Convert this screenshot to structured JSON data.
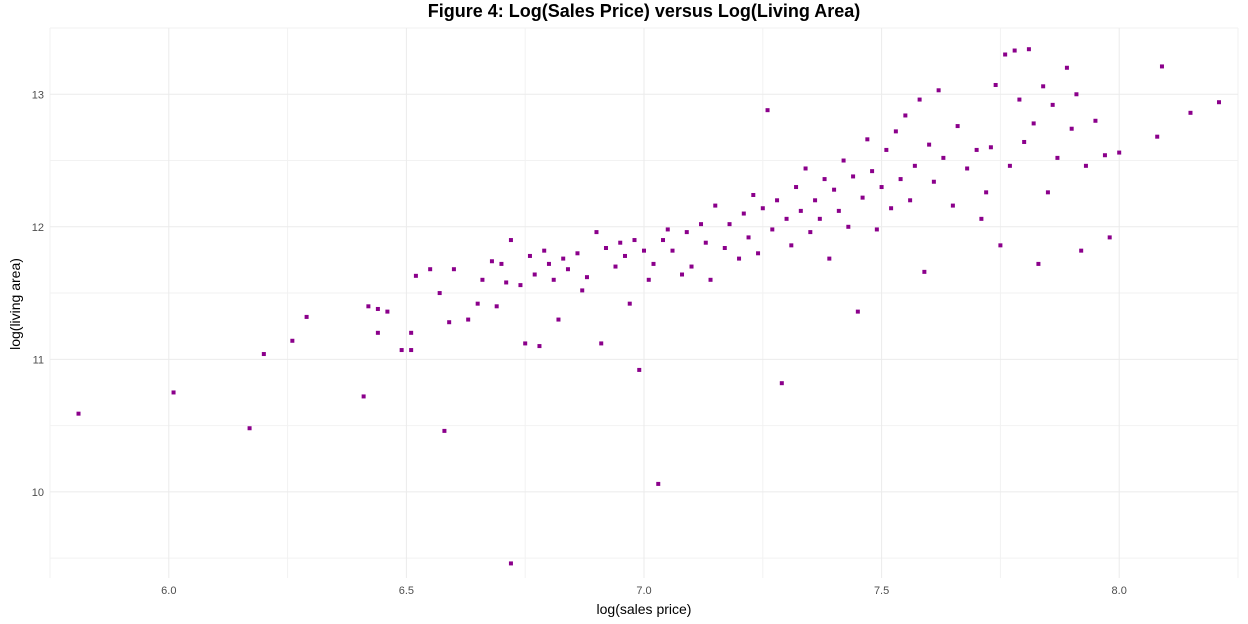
{
  "chart_data": {
    "type": "scatter",
    "title": "Figure 4: Log(Sales Price) versus Log(Living Area)",
    "xlabel": "log(sales price)",
    "ylabel": "log(living area)",
    "xlim": [
      5.75,
      8.25
    ],
    "ylim": [
      9.35,
      13.5
    ],
    "x_ticks": [
      6.0,
      6.5,
      7.0,
      7.5,
      8.0
    ],
    "x_tick_labels": [
      "6.0",
      "6.5",
      "7.0",
      "7.5",
      "8.0"
    ],
    "y_ticks": [
      10,
      11,
      12,
      13
    ],
    "y_tick_labels": [
      "10",
      "11",
      "12",
      "13"
    ],
    "grid": true,
    "point_color": "#8B008B",
    "series": [
      {
        "points": [
          [
            5.81,
            10.59
          ],
          [
            6.01,
            10.75
          ],
          [
            6.17,
            10.48
          ],
          [
            6.2,
            11.04
          ],
          [
            6.26,
            11.14
          ],
          [
            6.29,
            11.32
          ],
          [
            6.41,
            10.72
          ],
          [
            6.42,
            11.4
          ],
          [
            6.44,
            11.38
          ],
          [
            6.44,
            11.2
          ],
          [
            6.46,
            11.36
          ],
          [
            6.49,
            11.07
          ],
          [
            6.51,
            11.07
          ],
          [
            6.51,
            11.2
          ],
          [
            6.52,
            11.63
          ],
          [
            6.55,
            11.68
          ],
          [
            6.57,
            11.5
          ],
          [
            6.58,
            10.46
          ],
          [
            6.59,
            11.28
          ],
          [
            6.6,
            11.68
          ],
          [
            6.63,
            11.3
          ],
          [
            6.65,
            11.42
          ],
          [
            6.66,
            11.6
          ],
          [
            6.68,
            11.74
          ],
          [
            6.69,
            11.4
          ],
          [
            6.7,
            11.72
          ],
          [
            6.71,
            11.58
          ],
          [
            6.72,
            11.9
          ],
          [
            6.72,
            9.46
          ],
          [
            6.74,
            11.56
          ],
          [
            6.75,
            11.12
          ],
          [
            6.76,
            11.78
          ],
          [
            6.77,
            11.64
          ],
          [
            6.78,
            11.1
          ],
          [
            6.79,
            11.82
          ],
          [
            6.8,
            11.72
          ],
          [
            6.81,
            11.6
          ],
          [
            6.82,
            11.3
          ],
          [
            6.83,
            11.76
          ],
          [
            6.84,
            11.68
          ],
          [
            6.86,
            11.8
          ],
          [
            6.87,
            11.52
          ],
          [
            6.88,
            11.62
          ],
          [
            6.9,
            11.96
          ],
          [
            6.91,
            11.12
          ],
          [
            6.92,
            11.84
          ],
          [
            6.94,
            11.7
          ],
          [
            6.95,
            11.88
          ],
          [
            6.96,
            11.78
          ],
          [
            6.97,
            11.42
          ],
          [
            6.98,
            11.9
          ],
          [
            6.99,
            10.92
          ],
          [
            7.0,
            11.82
          ],
          [
            7.01,
            11.6
          ],
          [
            7.02,
            11.72
          ],
          [
            7.03,
            10.06
          ],
          [
            7.04,
            11.9
          ],
          [
            7.05,
            11.98
          ],
          [
            7.06,
            11.82
          ],
          [
            7.08,
            11.64
          ],
          [
            7.09,
            11.96
          ],
          [
            7.1,
            11.7
          ],
          [
            7.12,
            12.02
          ],
          [
            7.13,
            11.88
          ],
          [
            7.14,
            11.6
          ],
          [
            7.15,
            12.16
          ],
          [
            7.17,
            11.84
          ],
          [
            7.18,
            12.02
          ],
          [
            7.2,
            11.76
          ],
          [
            7.21,
            12.1
          ],
          [
            7.22,
            11.92
          ],
          [
            7.23,
            12.24
          ],
          [
            7.24,
            11.8
          ],
          [
            7.25,
            12.14
          ],
          [
            7.26,
            12.88
          ],
          [
            7.27,
            11.98
          ],
          [
            7.28,
            12.2
          ],
          [
            7.29,
            10.82
          ],
          [
            7.3,
            12.06
          ],
          [
            7.31,
            11.86
          ],
          [
            7.32,
            12.3
          ],
          [
            7.33,
            12.12
          ],
          [
            7.34,
            12.44
          ],
          [
            7.35,
            11.96
          ],
          [
            7.36,
            12.2
          ],
          [
            7.37,
            12.06
          ],
          [
            7.38,
            12.36
          ],
          [
            7.39,
            11.76
          ],
          [
            7.4,
            12.28
          ],
          [
            7.41,
            12.12
          ],
          [
            7.42,
            12.5
          ],
          [
            7.43,
            12.0
          ],
          [
            7.44,
            12.38
          ],
          [
            7.45,
            11.36
          ],
          [
            7.46,
            12.22
          ],
          [
            7.47,
            12.66
          ],
          [
            7.48,
            12.42
          ],
          [
            7.49,
            11.98
          ],
          [
            7.5,
            12.3
          ],
          [
            7.51,
            12.58
          ],
          [
            7.52,
            12.14
          ],
          [
            7.53,
            12.72
          ],
          [
            7.54,
            12.36
          ],
          [
            7.55,
            12.84
          ],
          [
            7.56,
            12.2
          ],
          [
            7.57,
            12.46
          ],
          [
            7.58,
            12.96
          ],
          [
            7.59,
            11.66
          ],
          [
            7.6,
            12.62
          ],
          [
            7.61,
            12.34
          ],
          [
            7.62,
            13.03
          ],
          [
            7.63,
            12.52
          ],
          [
            7.65,
            12.16
          ],
          [
            7.66,
            12.76
          ],
          [
            7.68,
            12.44
          ],
          [
            7.7,
            12.58
          ],
          [
            7.71,
            12.06
          ],
          [
            7.72,
            12.26
          ],
          [
            7.73,
            12.6
          ],
          [
            7.74,
            13.07
          ],
          [
            7.75,
            11.86
          ],
          [
            7.76,
            13.3
          ],
          [
            7.77,
            12.46
          ],
          [
            7.78,
            13.33
          ],
          [
            7.79,
            12.96
          ],
          [
            7.8,
            12.64
          ],
          [
            7.81,
            13.34
          ],
          [
            7.82,
            12.78
          ],
          [
            7.83,
            11.72
          ],
          [
            7.84,
            13.06
          ],
          [
            7.85,
            12.26
          ],
          [
            7.86,
            12.92
          ],
          [
            7.87,
            12.52
          ],
          [
            7.89,
            13.2
          ],
          [
            7.9,
            12.74
          ],
          [
            7.91,
            13.0
          ],
          [
            7.92,
            11.82
          ],
          [
            7.93,
            12.46
          ],
          [
            7.95,
            12.8
          ],
          [
            7.97,
            12.54
          ],
          [
            7.98,
            11.92
          ],
          [
            8.0,
            12.56
          ],
          [
            8.08,
            12.68
          ],
          [
            8.09,
            13.21
          ],
          [
            8.15,
            12.86
          ],
          [
            8.21,
            12.94
          ]
        ]
      }
    ]
  }
}
